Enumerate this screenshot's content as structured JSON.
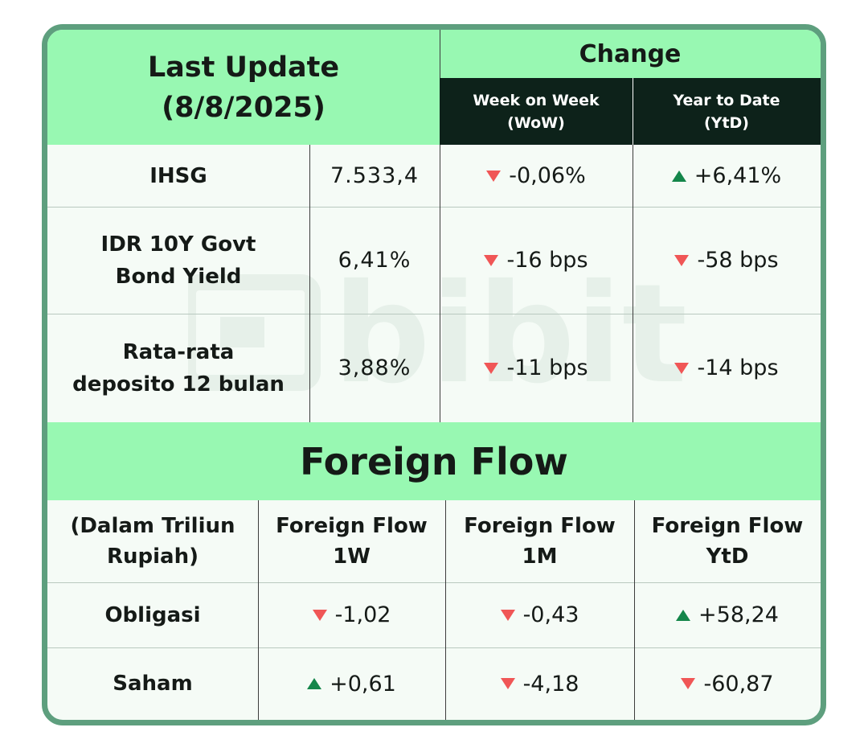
{
  "header": {
    "title_line1": "Last Update",
    "title_line2": "(8/8/2025)",
    "change": "Change",
    "wow_line1": "Week on Week",
    "wow_line2": "(WoW)",
    "ytd_line1": "Year to Date",
    "ytd_line2": "(YtD)"
  },
  "rows": [
    {
      "label_line1": "IHSG",
      "label_line2": "",
      "value": "7.533,4",
      "wow_dir": "down",
      "wow": "-0,06%",
      "ytd_dir": "up",
      "ytd": "+6,41%"
    },
    {
      "label_line1": "IDR 10Y Govt",
      "label_line2": "Bond Yield",
      "value": "6,41%",
      "wow_dir": "down",
      "wow": "-16 bps",
      "ytd_dir": "down",
      "ytd": "-58 bps"
    },
    {
      "label_line1": "Rata-rata",
      "label_line2": "deposito 12 bulan",
      "value": "3,88%",
      "wow_dir": "down",
      "wow": "-11 bps",
      "ytd_dir": "down",
      "ytd": "-14 bps"
    }
  ],
  "foreign_flow": {
    "title": "Foreign Flow",
    "unit_line1": "(Dalam Triliun",
    "unit_line2": "Rupiah)",
    "columns": [
      {
        "line1": "Foreign Flow",
        "line2": "1W"
      },
      {
        "line1": "Foreign Flow",
        "line2": "1M"
      },
      {
        "line1": "Foreign Flow",
        "line2": "YtD"
      }
    ],
    "rows": [
      {
        "label": "Obligasi",
        "values": [
          {
            "dir": "down",
            "value": "-1,02"
          },
          {
            "dir": "down",
            "value": "-0,43"
          },
          {
            "dir": "up",
            "value": "+58,24"
          }
        ]
      },
      {
        "label": "Saham",
        "values": [
          {
            "dir": "up",
            "value": "+0,61"
          },
          {
            "dir": "down",
            "value": "-4,18"
          },
          {
            "dir": "down",
            "value": "-60,87"
          }
        ]
      }
    ]
  },
  "watermark": {
    "logo": "bibit",
    "icon": "bibit-logo-icon"
  },
  "colors": {
    "header_green": "#98f8b2",
    "dark_header": "#0d221a",
    "border": "#5e9f7e",
    "down": "#f05656",
    "up": "#14864a"
  }
}
